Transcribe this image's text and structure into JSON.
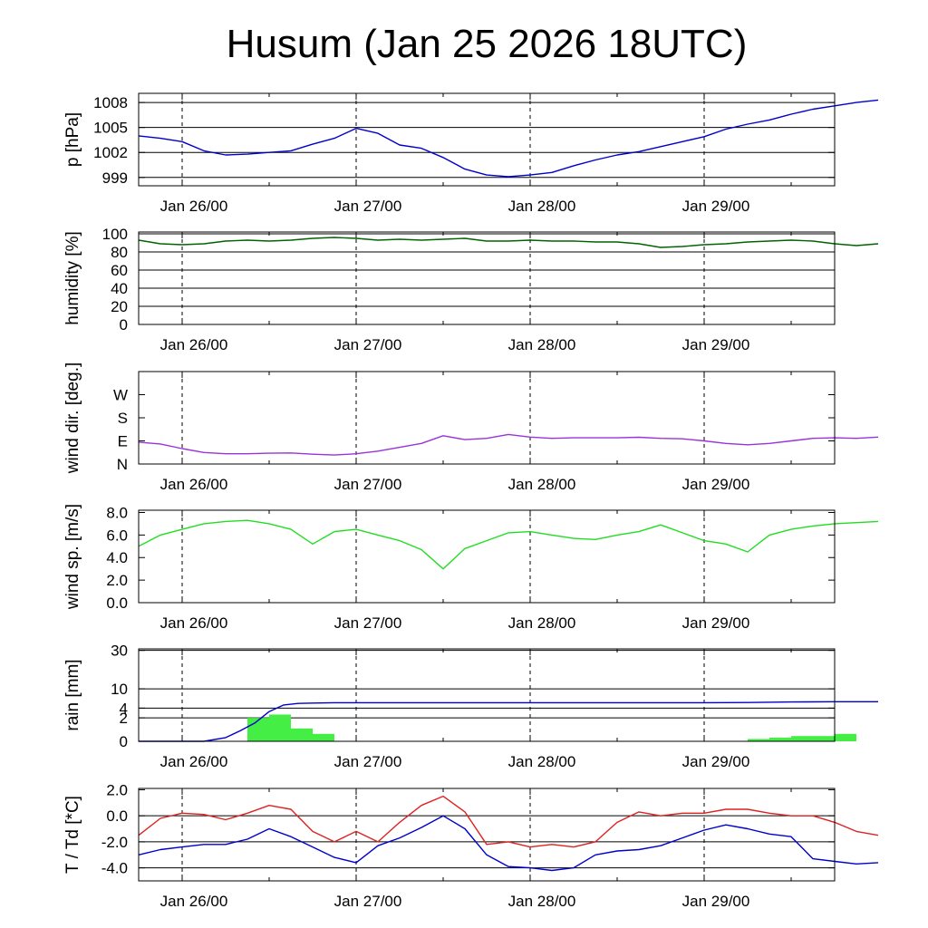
{
  "title": "Husum (Jan 25 2026 18UTC)",
  "chart_data": {
    "type": "line",
    "x_range": [
      "2026-01-25T18:00",
      "2026-01-29T18:00"
    ],
    "day_markers": [
      "2026-01-26T00:00",
      "2026-01-27T00:00",
      "2026-01-28T00:00",
      "2026-01-29T00:00"
    ],
    "day_labels": [
      "Jan 26/00",
      "Jan 27/00",
      "Jan 28/00",
      "Jan 29/00"
    ],
    "colors": {
      "pressure": "#0000cc",
      "humidity": "#006400",
      "wind_dir": "#9933dd",
      "wind_speed": "#22dd22",
      "rain_bars": "#44ee44",
      "rain_cum": "#0000cc",
      "temperature": "#dd2222",
      "dewpoint": "#0000cc"
    },
    "panels": [
      {
        "key": "pressure",
        "ylabel": "p [hPa]",
        "ylim": [
          998,
          1009.1
        ],
        "yticks": [
          999,
          1002,
          1005,
          1008
        ],
        "ytick_labels": [
          "999",
          "1002",
          "1005",
          "1008"
        ],
        "gridlines": [
          999,
          1002,
          1005,
          1008
        ],
        "series": [
          {
            "key": "pressure",
            "type": "line",
            "x": [
              -6,
              -3,
              0,
              3,
              6,
              9,
              12,
              15,
              18,
              21,
              24,
              27,
              30,
              33,
              36,
              39,
              42,
              45,
              48,
              51,
              54,
              57,
              60,
              63,
              66,
              69,
              72,
              75,
              78,
              81,
              84,
              87,
              90,
              93,
              96
            ],
            "y": [
              1004.0,
              1003.7,
              1003.3,
              1002.2,
              1001.7,
              1001.8,
              1002.0,
              1002.2,
              1003.0,
              1003.7,
              1004.9,
              1004.3,
              1002.9,
              1002.5,
              1001.4,
              1000.0,
              999.3,
              999.1,
              999.3,
              999.6,
              1000.4,
              1001.1,
              1001.7,
              1002.1,
              1002.7,
              1003.3,
              1003.9,
              1004.8,
              1005.4,
              1005.9,
              1006.6,
              1007.2,
              1007.6,
              1008.0,
              1008.3
            ]
          }
        ]
      },
      {
        "key": "humidity",
        "ylabel": "humidity [%]",
        "ylim": [
          0,
          102
        ],
        "yticks": [
          0,
          20,
          40,
          60,
          80,
          100
        ],
        "ytick_labels": [
          "0",
          "20",
          "40",
          "60",
          "80",
          "100"
        ],
        "gridlines": [
          20,
          40,
          60,
          80,
          100
        ],
        "series": [
          {
            "key": "humidity",
            "type": "line",
            "x": [
              -6,
              -3,
              0,
              3,
              6,
              9,
              12,
              15,
              18,
              21,
              24,
              27,
              30,
              33,
              36,
              39,
              42,
              45,
              48,
              51,
              54,
              57,
              60,
              63,
              66,
              69,
              72,
              75,
              78,
              81,
              84,
              87,
              90,
              93,
              96
            ],
            "y": [
              93,
              89,
              88,
              89,
              92,
              93,
              92,
              93,
              95,
              96,
              95,
              93,
              94,
              93,
              94,
              95,
              92,
              92,
              93,
              92,
              92,
              91,
              91,
              89,
              85,
              86,
              88,
              89,
              91,
              92,
              93,
              92,
              89,
              87,
              89
            ]
          }
        ]
      },
      {
        "key": "wind_dir",
        "ylabel": "wind dir. [deg.]",
        "ylim": [
          0,
          360
        ],
        "yticks": [
          0,
          90,
          180,
          270
        ],
        "ytick_labels": [
          "N",
          "E",
          "S",
          "W"
        ],
        "gridlines": [],
        "series": [
          {
            "key": "wind_dir",
            "type": "line",
            "x": [
              -6,
              -3,
              0,
              3,
              6,
              9,
              12,
              15,
              18,
              21,
              24,
              27,
              30,
              33,
              36,
              39,
              42,
              45,
              48,
              51,
              54,
              57,
              60,
              63,
              66,
              69,
              72,
              75,
              78,
              81,
              84,
              87,
              90,
              93,
              96
            ],
            "y": [
              85,
              78,
              60,
              45,
              40,
              40,
              42,
              43,
              38,
              35,
              40,
              50,
              65,
              80,
              110,
              95,
              100,
              115,
              105,
              100,
              102,
              102,
              102,
              104,
              100,
              98,
              90,
              80,
              75,
              80,
              90,
              100,
              102,
              100,
              105
            ]
          }
        ]
      },
      {
        "key": "wind_speed",
        "ylabel": "wind sp. [m/s]",
        "ylim": [
          0,
          8.2
        ],
        "yticks": [
          0,
          2,
          4,
          6,
          8
        ],
        "ytick_labels": [
          "0.0",
          "2.0",
          "4.0",
          "6.0",
          "8.0"
        ],
        "gridlines": [],
        "series": [
          {
            "key": "wind_speed",
            "type": "line",
            "x": [
              -6,
              -3,
              0,
              3,
              6,
              9,
              12,
              15,
              18,
              21,
              24,
              27,
              30,
              33,
              36,
              39,
              42,
              45,
              48,
              51,
              54,
              57,
              60,
              63,
              66,
              69,
              72,
              75,
              78,
              81,
              84,
              87,
              90,
              93,
              96
            ],
            "y": [
              5.0,
              6.0,
              6.5,
              7.0,
              7.2,
              7.3,
              7.0,
              6.5,
              5.2,
              6.3,
              6.5,
              6.0,
              5.5,
              4.7,
              3.0,
              4.8,
              5.5,
              6.2,
              6.3,
              6.0,
              5.7,
              5.6,
              6.0,
              6.3,
              6.9,
              6.2,
              5.5,
              5.2,
              4.5,
              6.0,
              6.5,
              6.8,
              7.0,
              7.1,
              7.2
            ]
          }
        ]
      },
      {
        "key": "rain",
        "ylabel": "rain [mm]",
        "ylim": [
          0,
          31
        ],
        "scale": "sqrt",
        "yticks": [
          0,
          2,
          4,
          10,
          30
        ],
        "ytick_labels": [
          "0",
          "2",
          "4",
          "10",
          "30"
        ],
        "gridlines": [
          2,
          4,
          10,
          30
        ],
        "bars": {
          "key": "rain_bars",
          "width_hours": 3,
          "x": [
            9,
            12,
            15,
            18,
            78,
            81,
            84,
            87,
            90
          ],
          "y": [
            2.0,
            2.6,
            0.6,
            0.2,
            0.02,
            0.05,
            0.1,
            0.1,
            0.2
          ]
        },
        "series": [
          {
            "key": "rain_cum",
            "type": "line",
            "x": [
              -6,
              0,
              3,
              6,
              8,
              10,
              12,
              14,
              16,
              18,
              21,
              24,
              36,
              48,
              60,
              72,
              78,
              84,
              90,
              96
            ],
            "y": [
              0,
              0,
              0,
              0.05,
              0.4,
              1.2,
              3.2,
              4.8,
              5.2,
              5.3,
              5.4,
              5.4,
              5.4,
              5.4,
              5.4,
              5.4,
              5.45,
              5.6,
              5.7,
              5.7
            ]
          }
        ]
      },
      {
        "key": "temperature",
        "ylabel": "T / Td [*C]",
        "ylim": [
          -5,
          2.1
        ],
        "yticks": [
          -4,
          -2,
          0,
          2
        ],
        "ytick_labels": [
          "-4.0",
          "-2.0",
          "0.0",
          "2.0"
        ],
        "gridlines": [
          -4,
          -2,
          0
        ],
        "series": [
          {
            "key": "temperature",
            "type": "line",
            "x": [
              -6,
              -3,
              0,
              3,
              6,
              9,
              12,
              15,
              18,
              21,
              24,
              27,
              30,
              33,
              36,
              39,
              42,
              45,
              48,
              51,
              54,
              57,
              60,
              63,
              66,
              69,
              72,
              75,
              78,
              81,
              84,
              87,
              90,
              93,
              96
            ],
            "y": [
              -1.5,
              -0.2,
              0.2,
              0.1,
              -0.3,
              0.2,
              0.8,
              0.5,
              -1.2,
              -2.0,
              -1.2,
              -2.0,
              -0.5,
              0.8,
              1.5,
              0.3,
              -2.2,
              -2.0,
              -2.4,
              -2.2,
              -2.4,
              -2.0,
              -0.5,
              0.3,
              0.0,
              0.2,
              0.2,
              0.5,
              0.5,
              0.2,
              0.0,
              0.0,
              -0.5,
              -1.2,
              -1.5
            ]
          },
          {
            "key": "dewpoint",
            "type": "line",
            "x": [
              -6,
              -3,
              0,
              3,
              6,
              9,
              12,
              15,
              18,
              21,
              24,
              27,
              30,
              33,
              36,
              39,
              42,
              45,
              48,
              51,
              54,
              57,
              60,
              63,
              66,
              69,
              72,
              75,
              78,
              81,
              84,
              87,
              90,
              93,
              96
            ],
            "y": [
              -3.0,
              -2.6,
              -2.4,
              -2.2,
              -2.2,
              -1.8,
              -1.0,
              -1.6,
              -2.4,
              -3.2,
              -3.6,
              -2.3,
              -1.7,
              -0.9,
              0.0,
              -1.0,
              -3.0,
              -3.9,
              -4.0,
              -4.2,
              -4.0,
              -3.0,
              -2.7,
              -2.6,
              -2.3,
              -1.7,
              -1.1,
              -0.7,
              -1.0,
              -1.4,
              -1.6,
              -3.3,
              -3.5,
              -3.7,
              -3.6
            ]
          }
        ]
      }
    ]
  }
}
